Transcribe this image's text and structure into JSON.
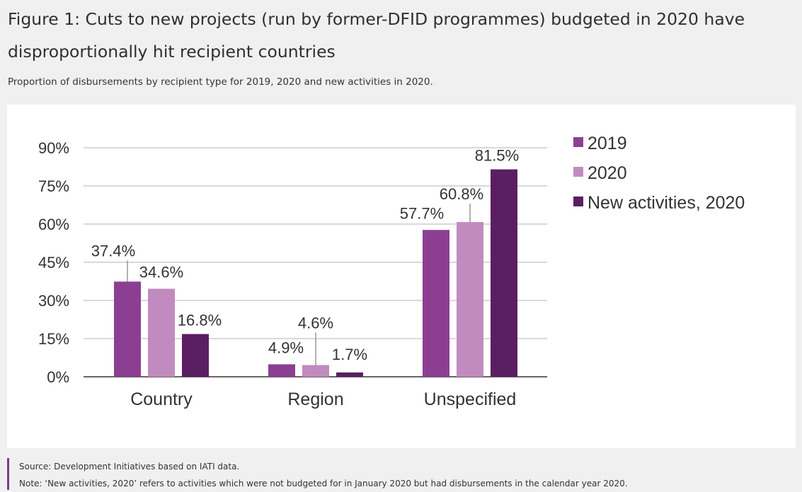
{
  "title": "Figure 1: Cuts to new projects (run by former-DFID programmes) budgeted in 2020 have disproportionally hit recipient countries",
  "subtitle": "Proportion of disbursements by recipient type for 2019, 2020 and new activities in 2020.",
  "footnotes": {
    "source": "Source: Development Initiatives based on IATI data.",
    "note": "Note: ‘New activities, 2020’ refers to activities which were not budgeted for in January 2020 but had disbursements in the calendar year 2020."
  },
  "colors": {
    "series_2019": "#8c3f92",
    "series_2020": "#c28bbf",
    "series_new": "#5b1e63",
    "gridline": "#d9d9d9",
    "axis": "#666666",
    "text": "#333333",
    "accent_bar": "#7b3a8c"
  },
  "chart_data": {
    "type": "bar",
    "categories": [
      "Country",
      "Region",
      "Unspecified"
    ],
    "series": [
      {
        "name": "2019",
        "values": [
          37.4,
          4.9,
          57.7
        ],
        "labels": [
          "37.4%",
          "4.9%",
          "57.7%"
        ]
      },
      {
        "name": "2020",
        "values": [
          34.6,
          4.6,
          60.8
        ],
        "labels": [
          "34.6%",
          "4.6%",
          "60.8%"
        ]
      },
      {
        "name": "New activities, 2020",
        "values": [
          16.8,
          1.7,
          81.5
        ],
        "labels": [
          "16.8%",
          "1.7%",
          "81.5%"
        ]
      }
    ],
    "yticks": [
      "0%",
      "15%",
      "30%",
      "45%",
      "60%",
      "75%",
      "90%"
    ],
    "ylim": [
      0,
      90
    ],
    "grid": true,
    "legend_position": "right"
  }
}
